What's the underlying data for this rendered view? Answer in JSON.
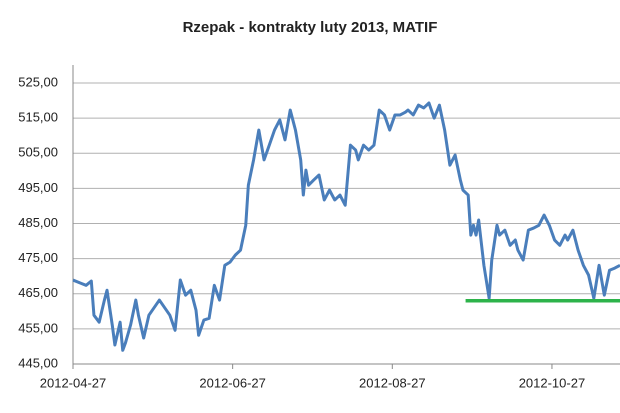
{
  "chart_data": {
    "type": "line",
    "title": "Rzepak - kontrakty luty 2013, MATIF",
    "x": [
      "2012-04-27",
      "2012-04-30",
      "2012-05-02",
      "2012-05-04",
      "2012-05-05",
      "2012-05-07",
      "2012-05-09",
      "2012-05-10",
      "2012-05-12",
      "2012-05-13",
      "2012-05-15",
      "2012-05-16",
      "2012-05-17",
      "2012-05-19",
      "2012-05-21",
      "2012-05-22",
      "2012-05-24",
      "2012-05-26",
      "2012-05-30",
      "2012-06-03",
      "2012-06-05",
      "2012-06-07",
      "2012-06-09",
      "2012-06-11",
      "2012-06-13",
      "2012-06-14",
      "2012-06-16",
      "2012-06-18",
      "2012-06-20",
      "2012-06-22",
      "2012-06-24",
      "2012-06-26",
      "2012-06-28",
      "2012-06-30",
      "2012-07-02",
      "2012-07-03",
      "2012-07-05",
      "2012-07-07",
      "2012-07-09",
      "2012-07-11",
      "2012-07-13",
      "2012-07-15",
      "2012-07-17",
      "2012-07-19",
      "2012-07-21",
      "2012-07-23",
      "2012-07-24",
      "2012-07-25",
      "2012-07-26",
      "2012-07-28",
      "2012-07-30",
      "2012-08-01",
      "2012-08-03",
      "2012-08-05",
      "2012-08-07",
      "2012-08-09",
      "2012-08-11",
      "2012-08-13",
      "2012-08-14",
      "2012-08-16",
      "2012-08-18",
      "2012-08-20",
      "2012-08-22",
      "2012-08-24",
      "2012-08-26",
      "2012-08-28",
      "2012-08-30",
      "2012-09-01",
      "2012-09-02",
      "2012-09-04",
      "2012-09-06",
      "2012-09-08",
      "2012-09-10",
      "2012-09-12",
      "2012-09-14",
      "2012-09-16",
      "2012-09-18",
      "2012-09-20",
      "2012-09-22",
      "2012-09-23",
      "2012-09-25",
      "2012-09-26",
      "2012-09-27",
      "2012-09-28",
      "2012-09-29",
      "2012-10-01",
      "2012-10-03",
      "2012-10-04",
      "2012-10-06",
      "2012-10-07",
      "2012-10-09",
      "2012-10-11",
      "2012-10-13",
      "2012-10-14",
      "2012-10-16",
      "2012-10-18",
      "2012-10-20",
      "2012-10-22",
      "2012-10-24",
      "2012-10-26",
      "2012-10-28",
      "2012-10-30",
      "2012-11-01",
      "2012-11-02",
      "2012-11-04",
      "2012-11-06",
      "2012-11-08",
      "2012-11-10",
      "2012-11-12",
      "2012-11-14",
      "2012-11-16",
      "2012-11-18",
      "2012-11-20",
      "2012-11-22"
    ],
    "series": [
      {
        "color": "#4a7ebb",
        "values": [
          468.9,
          468.0,
          467.4,
          468.6,
          458.9,
          456.9,
          463.2,
          466.0,
          456.1,
          450.4,
          456.9,
          448.9,
          450.9,
          456.1,
          463.2,
          458.9,
          452.4,
          458.9,
          463.2,
          458.9,
          454.6,
          468.9,
          464.6,
          466.0,
          460.3,
          453.2,
          457.5,
          458.0,
          467.4,
          463.2,
          473.1,
          474.0,
          476.0,
          477.4,
          484.5,
          495.9,
          503.1,
          511.6,
          503.1,
          507.3,
          511.6,
          514.5,
          508.8,
          517.3,
          511.6,
          503.1,
          493.1,
          500.2,
          495.9,
          497.4,
          498.8,
          491.7,
          494.5,
          491.7,
          493.1,
          490.2,
          507.3,
          505.9,
          503.1,
          507.3,
          505.9,
          507.3,
          517.3,
          515.9,
          511.6,
          515.9,
          515.9,
          516.7,
          517.3,
          515.9,
          518.7,
          517.9,
          519.3,
          515.0,
          518.7,
          511.6,
          501.6,
          504.5,
          497.4,
          494.5,
          493.1,
          481.7,
          484.5,
          481.7,
          486.0,
          473.1,
          463.7,
          474.6,
          484.5,
          481.7,
          483.1,
          478.8,
          480.3,
          477.4,
          474.6,
          483.1,
          483.7,
          484.5,
          487.4,
          484.5,
          480.3,
          478.8,
          481.7,
          480.3,
          483.1,
          477.4,
          473.1,
          470.3,
          463.7,
          473.1,
          464.6,
          471.7,
          472.3,
          473.1
        ]
      }
    ],
    "support_line": {
      "value": 463,
      "x": [
        "2012-09-24",
        "2012-11-22"
      ],
      "color": "#2db34a"
    },
    "xlim": [
      "2012-04-27",
      "2012-11-22"
    ],
    "xticks": [
      "2012-04-27",
      "2012-06-27",
      "2012-08-27",
      "2012-10-27"
    ],
    "ylim": [
      445,
      525
    ],
    "yticks": [
      {
        "value": 445,
        "label": "445,00"
      },
      {
        "value": 455,
        "label": "455,00"
      },
      {
        "value": 465,
        "label": "465,00"
      },
      {
        "value": 475,
        "label": "475,00"
      },
      {
        "value": 485,
        "label": "485,00"
      },
      {
        "value": 495,
        "label": "495,00"
      },
      {
        "value": 505,
        "label": "505,00"
      },
      {
        "value": 515,
        "label": "515,00"
      },
      {
        "value": 525,
        "label": "525,00"
      }
    ],
    "grid": true
  }
}
